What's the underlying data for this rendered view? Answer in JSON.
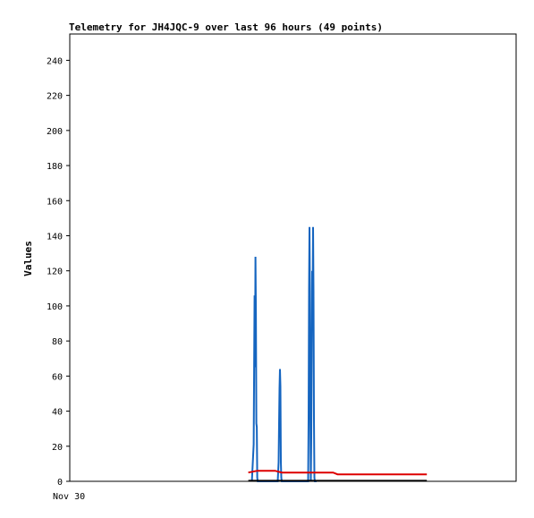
{
  "chart_data": {
    "type": "line",
    "title": "Telemetry for JH4JQC-9 over last 96 hours (49 points)",
    "xlabel": "",
    "ylabel": "Values",
    "x_tick_labels": [
      "Nov 30"
    ],
    "ylim": [
      0,
      255
    ],
    "yticks": [
      0,
      20,
      40,
      60,
      80,
      100,
      120,
      140,
      160,
      180,
      200,
      220,
      240
    ],
    "xlim": [
      0,
      100
    ],
    "grid": false,
    "legend": "none",
    "series": [
      {
        "color": "#1565c0",
        "x": [
          40.8,
          41.2,
          41.3,
          41.4,
          41.5,
          41.6,
          41.7,
          41.8,
          41.9,
          42.0,
          42.1,
          46.6,
          46.8,
          46.9,
          47.0,
          47.1,
          47.2,
          47.3,
          47.4,
          47.5,
          53.4,
          53.5,
          53.6,
          53.7,
          53.8,
          53.9,
          54.0,
          54.1,
          54.2,
          54.3,
          54.4,
          54.5,
          54.6,
          54.7,
          54.8,
          54.9,
          55.0,
          55.1,
          55.2,
          55.3
        ],
        "y": [
          0,
          21,
          64,
          106,
          65,
          128,
          96,
          33,
          31,
          2,
          0,
          0,
          11,
          33,
          53,
          64,
          54,
          11,
          2,
          0,
          0,
          36,
          108,
          145,
          108,
          36,
          0,
          25,
          72,
          120,
          96,
          145,
          108,
          36,
          2,
          0,
          0,
          0,
          0,
          0
        ]
      },
      {
        "color": "#dd0000",
        "x": [
          40.0,
          42.0,
          46.0,
          47.5,
          59.0,
          60.0,
          80.0
        ],
        "y": [
          5,
          6,
          6,
          5,
          5,
          4,
          4
        ]
      },
      {
        "color": "#000000",
        "x": [
          40.0,
          80.0
        ],
        "y": [
          0.3,
          0.3
        ]
      }
    ]
  }
}
